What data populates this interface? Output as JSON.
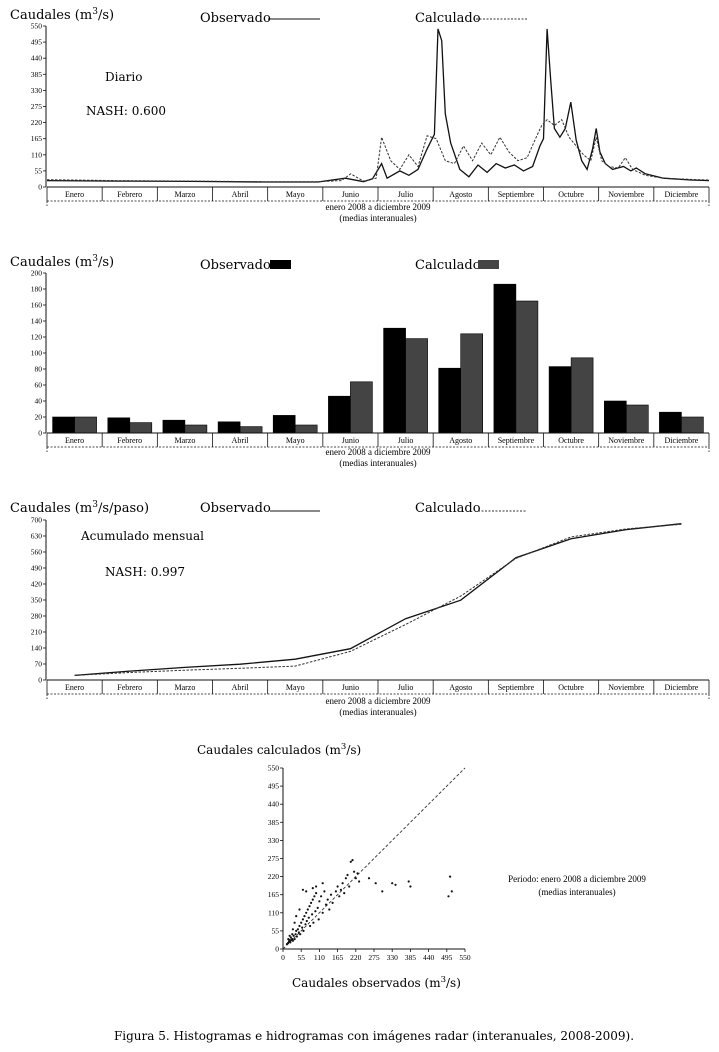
{
  "caption": "Figura 5. Histogramas e hidrogramas con imágenes radar (interanuales, 2008-2009).",
  "months": [
    "Enero",
    "Febrero",
    "Marzo",
    "Abril",
    "Mayo",
    "Junio",
    "Julio",
    "Agosto",
    "Septiembre",
    "Octubre",
    "Noviembre",
    "Diciembre"
  ],
  "period_note": [
    "enero 2008 a diciembre 2009",
    "(medias interanuales)"
  ],
  "chart_data": [
    {
      "type": "line",
      "id": "daily",
      "ylabel_pre": "Caudales (m",
      "ylabel_sup": "3",
      "ylabel_post": "/s)",
      "annotations": [
        "Diario",
        "NASH: 0.600"
      ],
      "ylim": [
        0,
        550
      ],
      "yticks": [
        0,
        55,
        110,
        165,
        220,
        275,
        330,
        385,
        440,
        495,
        550
      ],
      "x_range": [
        1,
        365
      ],
      "series": [
        {
          "name": "Observado",
          "style": "solid",
          "color": "#111111",
          "points": [
            [
              1,
              22
            ],
            [
              40,
              20
            ],
            [
              80,
              19
            ],
            [
              120,
              17
            ],
            [
              150,
              17
            ],
            [
              165,
              30
            ],
            [
              175,
              18
            ],
            [
              180,
              28
            ],
            [
              185,
              80
            ],
            [
              188,
              30
            ],
            [
              195,
              55
            ],
            [
              200,
              40
            ],
            [
              205,
              60
            ],
            [
              210,
              130
            ],
            [
              214,
              180
            ],
            [
              216,
              540
            ],
            [
              218,
              500
            ],
            [
              220,
              250
            ],
            [
              223,
              150
            ],
            [
              228,
              60
            ],
            [
              233,
              35
            ],
            [
              238,
              75
            ],
            [
              243,
              50
            ],
            [
              248,
              80
            ],
            [
              253,
              65
            ],
            [
              258,
              75
            ],
            [
              263,
              55
            ],
            [
              268,
              70
            ],
            [
              272,
              140
            ],
            [
              274,
              165
            ],
            [
              276,
              540
            ],
            [
              278,
              360
            ],
            [
              280,
              200
            ],
            [
              283,
              170
            ],
            [
              286,
              200
            ],
            [
              289,
              290
            ],
            [
              292,
              160
            ],
            [
              295,
              90
            ],
            [
              298,
              60
            ],
            [
              301,
              130
            ],
            [
              303,
              200
            ],
            [
              305,
              120
            ],
            [
              308,
              80
            ],
            [
              312,
              60
            ],
            [
              318,
              70
            ],
            [
              322,
              55
            ],
            [
              325,
              65
            ],
            [
              330,
              45
            ],
            [
              340,
              30
            ],
            [
              355,
              24
            ],
            [
              365,
              22
            ]
          ]
        },
        {
          "name": "Calculado",
          "style": "dashed",
          "color": "#333333",
          "points": [
            [
              1,
              25
            ],
            [
              40,
              22
            ],
            [
              80,
              20
            ],
            [
              120,
              18
            ],
            [
              150,
              18
            ],
            [
              163,
              22
            ],
            [
              168,
              45
            ],
            [
              175,
              20
            ],
            [
              182,
              30
            ],
            [
              185,
              170
            ],
            [
              190,
              90
            ],
            [
              195,
              60
            ],
            [
              200,
              110
            ],
            [
              205,
              70
            ],
            [
              210,
              175
            ],
            [
              215,
              165
            ],
            [
              220,
              90
            ],
            [
              225,
              80
            ],
            [
              230,
              140
            ],
            [
              235,
              90
            ],
            [
              240,
              150
            ],
            [
              245,
              110
            ],
            [
              250,
              170
            ],
            [
              255,
              120
            ],
            [
              260,
              90
            ],
            [
              265,
              100
            ],
            [
              270,
              170
            ],
            [
              273,
              210
            ],
            [
              276,
              230
            ],
            [
              280,
              210
            ],
            [
              284,
              230
            ],
            [
              288,
              170
            ],
            [
              292,
              140
            ],
            [
              296,
              110
            ],
            [
              300,
              90
            ],
            [
              303,
              170
            ],
            [
              306,
              90
            ],
            [
              310,
              70
            ],
            [
              315,
              65
            ],
            [
              319,
              100
            ],
            [
              323,
              60
            ],
            [
              330,
              40
            ],
            [
              340,
              30
            ],
            [
              355,
              26
            ],
            [
              365,
              24
            ]
          ]
        }
      ]
    },
    {
      "type": "bar",
      "id": "monthly",
      "ylabel_pre": "Caudales (m",
      "ylabel_sup": "3",
      "ylabel_post": "/s)",
      "ylim": [
        0,
        200
      ],
      "yticks": [
        0,
        20,
        40,
        60,
        80,
        100,
        120,
        140,
        160,
        180,
        200
      ],
      "series": [
        {
          "name": "Observado",
          "color": "#000000",
          "values": [
            20,
            19,
            16,
            14,
            22,
            46,
            131,
            81,
            186,
            83,
            40,
            26
          ]
        },
        {
          "name": "Calculado",
          "color": "#444444",
          "values": [
            20,
            13,
            10,
            8,
            10,
            64,
            118,
            124,
            165,
            94,
            35,
            20
          ]
        }
      ]
    },
    {
      "type": "line",
      "id": "cumulative",
      "ylabel_pre": "Caudales (m",
      "ylabel_sup": "3",
      "ylabel_post": "/s/paso)",
      "annotations": [
        "Acumulado mensual",
        "NASH: 0.997"
      ],
      "ylim": [
        0,
        700
      ],
      "yticks": [
        0,
        70,
        140,
        210,
        280,
        350,
        420,
        490,
        560,
        630,
        700
      ],
      "series": [
        {
          "name": "Observado",
          "style": "solid",
          "color": "#111111",
          "values": [
            20,
            39,
            55,
            69,
            91,
            137,
            268,
            349,
            535,
            618,
            658,
            684
          ]
        },
        {
          "name": "Calculado",
          "style": "dashed",
          "color": "#333333",
          "values": [
            20,
            33,
            43,
            51,
            61,
            125,
            243,
            367,
            532,
            626,
            661,
            681
          ]
        }
      ]
    },
    {
      "type": "scatter",
      "id": "scatter",
      "title_pre": "Caudales calculados (m",
      "title_sup": "3",
      "title_post": "/s)",
      "xlabel_pre": "Caudales observados (m",
      "xlabel_sup": "3",
      "xlabel_post": "/s)",
      "xlim": [
        0,
        550
      ],
      "ylim": [
        0,
        550
      ],
      "ticks": [
        0,
        55,
        110,
        165,
        220,
        275,
        330,
        385,
        440,
        495,
        550
      ],
      "period_note": [
        "Periodo: enero 2008 a diciembre 2009",
        "(medias interanuales)"
      ],
      "points": [
        [
          12,
          15
        ],
        [
          15,
          18
        ],
        [
          18,
          22
        ],
        [
          20,
          25
        ],
        [
          22,
          20
        ],
        [
          25,
          28
        ],
        [
          28,
          30
        ],
        [
          30,
          25
        ],
        [
          18,
          28
        ],
        [
          24,
          35
        ],
        [
          32,
          40
        ],
        [
          35,
          30
        ],
        [
          38,
          45
        ],
        [
          40,
          55
        ],
        [
          42,
          38
        ],
        [
          45,
          60
        ],
        [
          48,
          50
        ],
        [
          50,
          70
        ],
        [
          52,
          45
        ],
        [
          55,
          80
        ],
        [
          58,
          65
        ],
        [
          60,
          90
        ],
        [
          62,
          55
        ],
        [
          65,
          100
        ],
        [
          68,
          75
        ],
        [
          70,
          110
        ],
        [
          72,
          85
        ],
        [
          75,
          120
        ],
        [
          78,
          95
        ],
        [
          80,
          130
        ],
        [
          82,
          70
        ],
        [
          85,
          140
        ],
        [
          88,
          105
        ],
        [
          90,
          150
        ],
        [
          92,
          80
        ],
        [
          95,
          160
        ],
        [
          98,
          115
        ],
        [
          100,
          170
        ],
        [
          105,
          125
        ],
        [
          108,
          90
        ],
        [
          110,
          145
        ],
        [
          115,
          160
        ],
        [
          120,
          110
        ],
        [
          125,
          175
        ],
        [
          130,
          135
        ],
        [
          135,
          150
        ],
        [
          140,
          120
        ],
        [
          145,
          165
        ],
        [
          150,
          140
        ],
        [
          160,
          175
        ],
        [
          165,
          190
        ],
        [
          170,
          160
        ],
        [
          175,
          180
        ],
        [
          180,
          200
        ],
        [
          185,
          170
        ],
        [
          190,
          215
        ],
        [
          195,
          225
        ],
        [
          200,
          190
        ],
        [
          205,
          265
        ],
        [
          210,
          270
        ],
        [
          215,
          235
        ],
        [
          220,
          215
        ],
        [
          225,
          230
        ],
        [
          230,
          205
        ],
        [
          260,
          215
        ],
        [
          280,
          200
        ],
        [
          300,
          175
        ],
        [
          330,
          200
        ],
        [
          340,
          195
        ],
        [
          380,
          205
        ],
        [
          385,
          190
        ],
        [
          500,
          160
        ],
        [
          505,
          220
        ],
        [
          510,
          175
        ],
        [
          60,
          180
        ],
        [
          70,
          175
        ],
        [
          90,
          185
        ],
        [
          100,
          190
        ],
        [
          120,
          200
        ],
        [
          50,
          120
        ],
        [
          40,
          100
        ],
        [
          35,
          80
        ],
        [
          30,
          60
        ],
        [
          28,
          45
        ],
        [
          20,
          40
        ],
        [
          16,
          30
        ]
      ]
    }
  ]
}
